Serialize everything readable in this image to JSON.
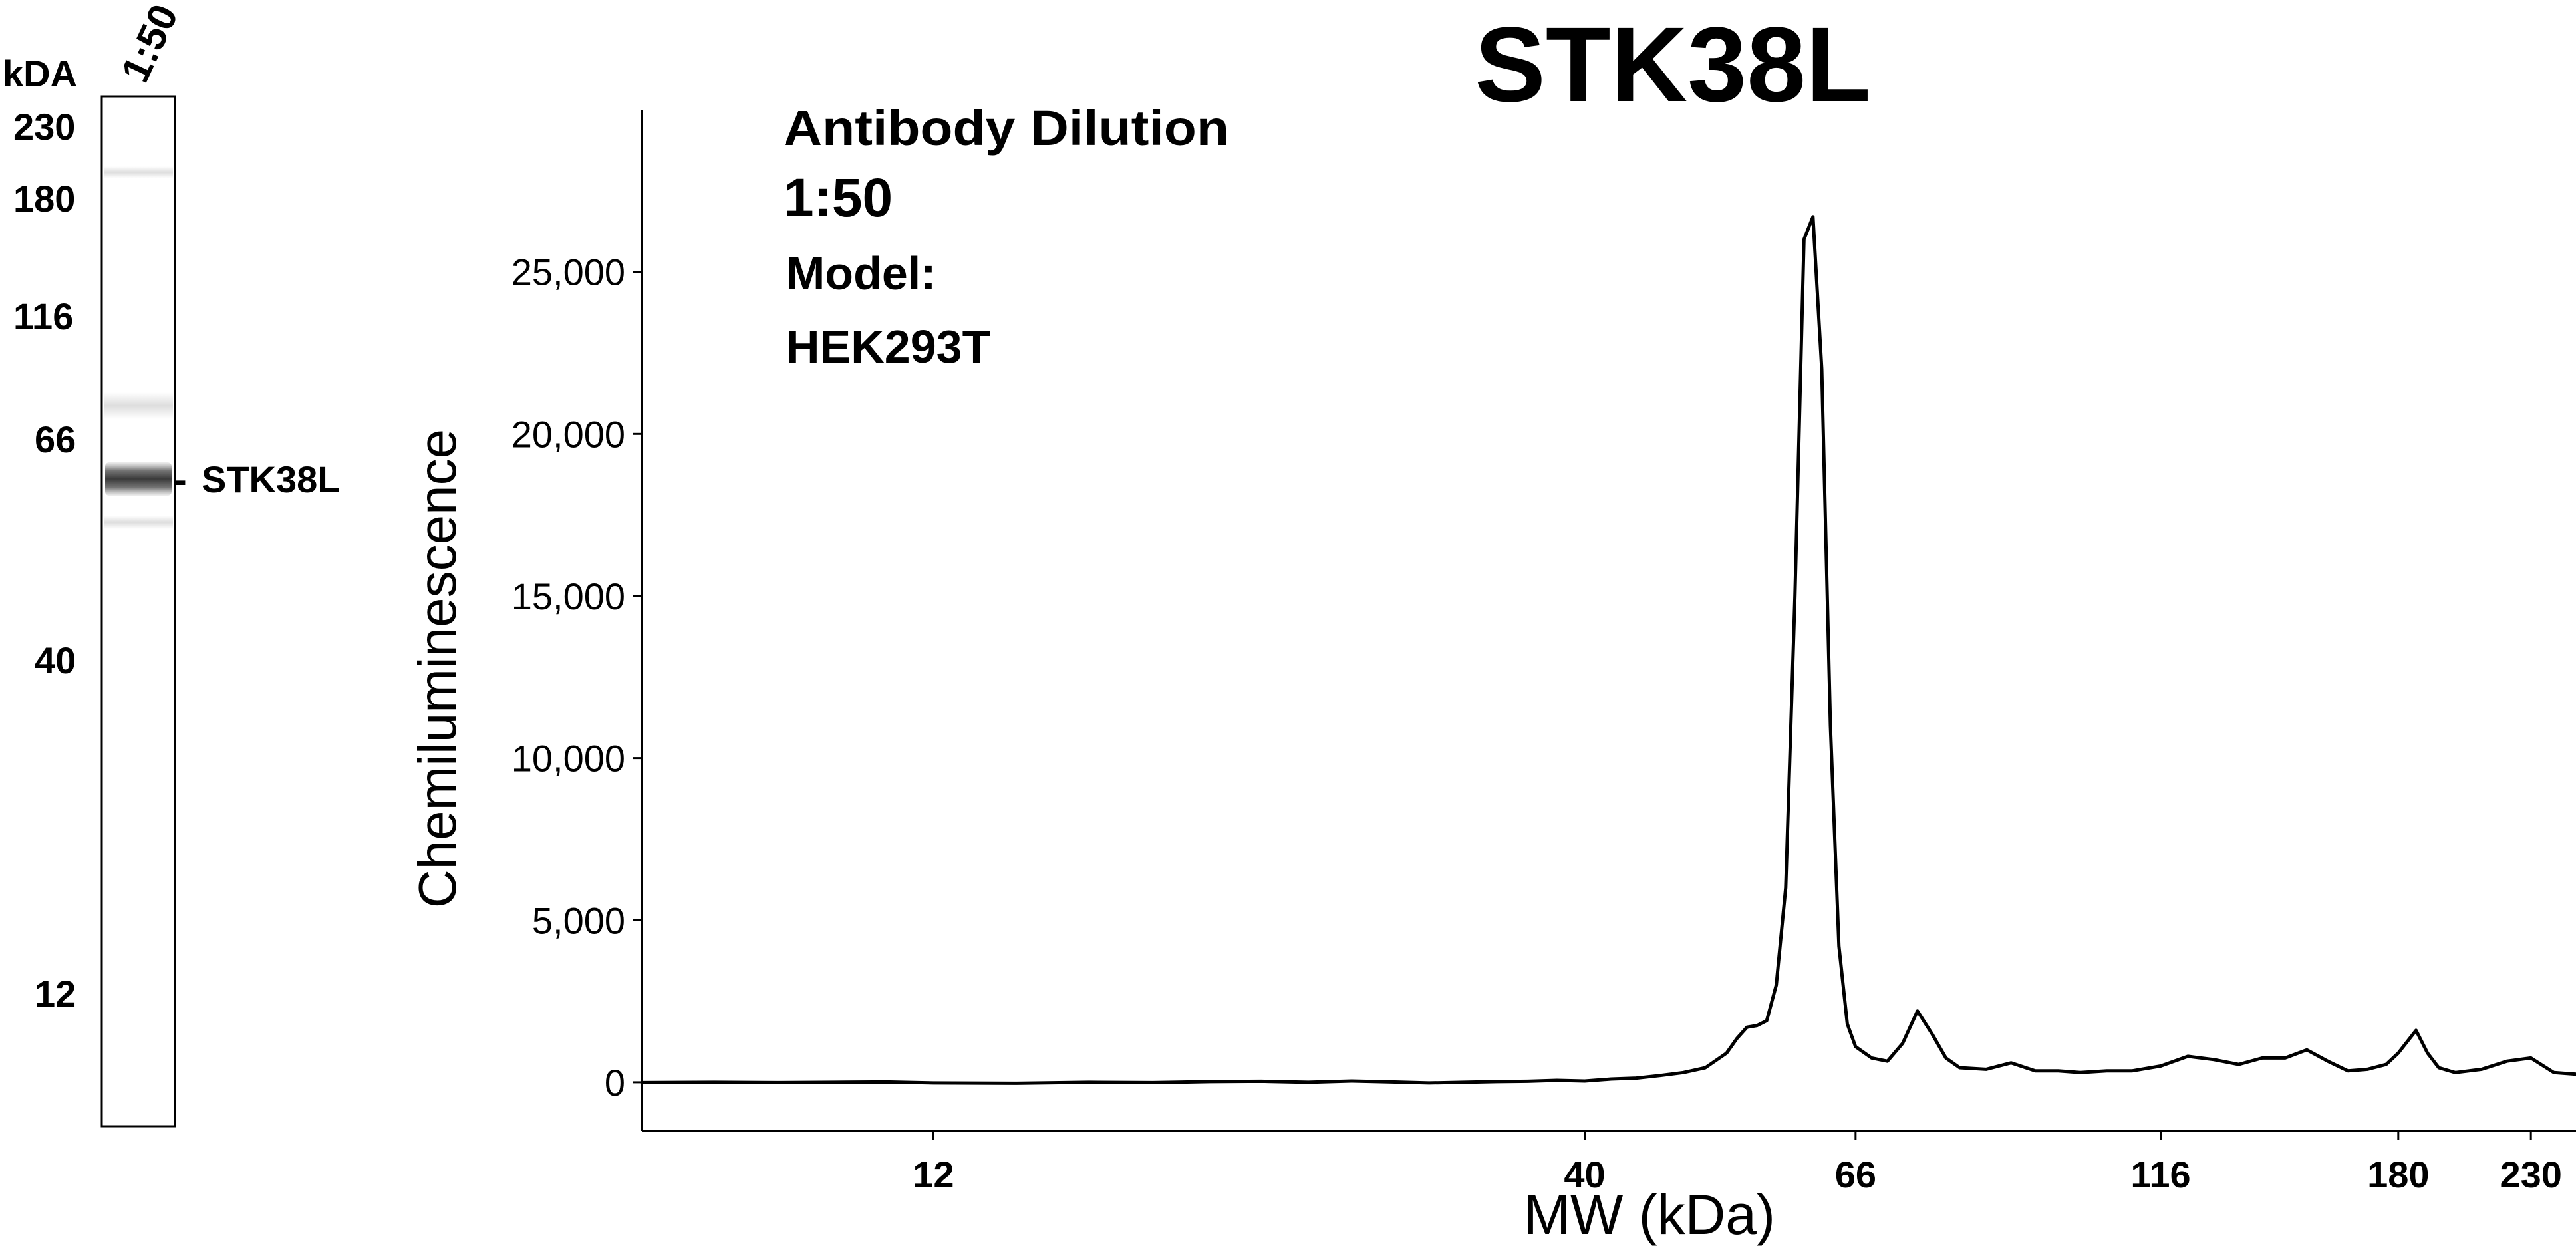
{
  "blot": {
    "unit_label": "kDA",
    "lane_label": "1:50",
    "markers": [
      "230",
      "180",
      "116",
      "66",
      "40",
      "12"
    ],
    "band_label": "STK38L",
    "band_marker": "-"
  },
  "chart_data": {
    "type": "line",
    "title": "STK38L",
    "xlabel": "MW (kDa)",
    "ylabel": "Chemiluminescence",
    "x_scale": "log",
    "xlim": [
      7,
      250
    ],
    "ylim": [
      -1500,
      30000
    ],
    "x_ticks": [
      12,
      40,
      66,
      116,
      180,
      230
    ],
    "x_tick_labels": [
      "12",
      "40",
      "66",
      "116",
      "180",
      "230"
    ],
    "y_ticks": [
      0,
      5000,
      10000,
      15000,
      20000,
      25000
    ],
    "y_tick_labels": [
      "0",
      "5,000",
      "10,000",
      "15,000",
      "20,000",
      "25,000"
    ],
    "annotations": [
      "Antibody Dilution",
      "1:50",
      "Model:",
      "HEK293T"
    ],
    "series": [
      {
        "x": [
          7,
          8,
          9,
          10,
          11,
          12,
          14,
          16,
          18,
          20,
          22,
          24,
          26,
          28,
          30,
          32,
          34,
          36,
          38,
          40,
          42,
          44,
          46,
          48,
          50,
          52,
          53,
          54,
          55,
          56,
          57,
          58,
          59,
          60,
          61,
          62,
          63,
          64,
          65,
          66,
          68,
          70,
          72,
          74,
          76,
          78,
          80,
          84,
          88,
          92,
          96,
          100,
          105,
          110,
          116,
          122,
          128,
          134,
          140,
          146,
          152,
          158,
          164,
          170,
          176,
          180,
          186,
          190,
          194,
          200,
          210,
          220,
          230,
          240,
          250
        ],
        "y": [
          -10,
          0,
          -10,
          0,
          10,
          -20,
          -30,
          0,
          -10,
          20,
          30,
          0,
          40,
          10,
          -20,
          0,
          20,
          30,
          60,
          40,
          100,
          130,
          210,
          300,
          450,
          900,
          1350,
          1700,
          1750,
          1900,
          3000,
          6000,
          15000,
          26000,
          26700,
          22000,
          11000,
          4200,
          1800,
          1100,
          750,
          650,
          1200,
          2200,
          1500,
          750,
          450,
          400,
          600,
          350,
          350,
          300,
          350,
          350,
          500,
          800,
          700,
          550,
          750,
          750,
          1000,
          650,
          350,
          400,
          550,
          900,
          1600,
          900,
          450,
          300,
          400,
          650,
          750,
          300,
          250
        ]
      }
    ]
  }
}
